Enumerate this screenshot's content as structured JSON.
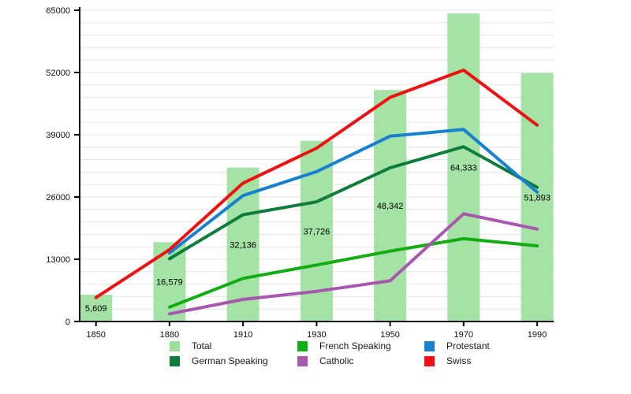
{
  "chart_data": {
    "type": "bar+line",
    "title": "",
    "xlabel": "",
    "ylabel": "",
    "categories": [
      "1850",
      "1880",
      "1910",
      "1930",
      "1950",
      "1970",
      "1990"
    ],
    "ylim": [
      0,
      65000
    ],
    "y_major_ticks": [
      0,
      13000,
      26000,
      39000,
      52000,
      65000
    ],
    "y_tick_labels": [
      "0",
      "13000",
      "26000",
      "39000",
      "52000",
      "65000"
    ],
    "y_minor_step": 2600,
    "grid": "horizontal minor gridlines on, light gray",
    "legend_position": "bottom",
    "bar_series": {
      "name": "Total",
      "color": "#9bdf9b",
      "values": [
        5609,
        16579,
        32136,
        37726,
        48342,
        64333,
        51893
      ],
      "labels": [
        "5,609",
        "16,579",
        "32,136",
        "37,726",
        "48,342",
        "64,333",
        "51,893"
      ]
    },
    "line_series": [
      {
        "name": "French Speaking",
        "color": "#12ad12",
        "values": [
          null,
          3000,
          9000,
          11800,
          14700,
          17300,
          15800
        ]
      },
      {
        "name": "German Speaking",
        "color": "#0e7d3c",
        "values": [
          null,
          13100,
          22300,
          25000,
          32100,
          36500,
          28000
        ]
      },
      {
        "name": "Catholic",
        "color": "#a857ae",
        "values": [
          null,
          1600,
          4600,
          6300,
          8500,
          22500,
          19300
        ]
      },
      {
        "name": "Protestant",
        "color": "#1781cf",
        "values": [
          null,
          14300,
          26300,
          31300,
          38700,
          40100,
          27000
        ]
      },
      {
        "name": "Swiss",
        "color": "#ee1111",
        "values": [
          5000,
          15000,
          28900,
          36200,
          46800,
          52500,
          41000
        ]
      }
    ]
  },
  "legend": {
    "items": [
      {
        "label": "Total",
        "color": "#9bdf9b"
      },
      {
        "label": "French Speaking",
        "color": "#12ad12"
      },
      {
        "label": "Protestant",
        "color": "#1781cf"
      },
      {
        "label": "German Speaking",
        "color": "#0e7d3c"
      },
      {
        "label": "Catholic",
        "color": "#a857ae"
      },
      {
        "label": "Swiss",
        "color": "#ee1111"
      }
    ]
  },
  "colors": {
    "axis": "#000000",
    "minor_grid": "#e4e4e4",
    "background": "#ffffff"
  }
}
